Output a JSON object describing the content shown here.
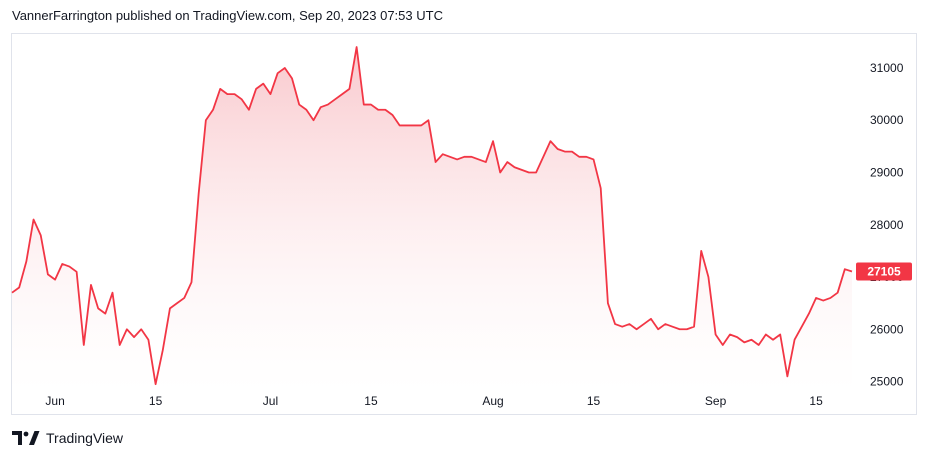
{
  "header": {
    "publisher_line": "VannerFarrington published on TradingView.com, Sep 20, 2023 07:53 UTC"
  },
  "footer": {
    "brand": "TradingView"
  },
  "colors": {
    "line": "#f23645",
    "fill_top": "#f7b6bc",
    "fill_bottom": "#ffffff",
    "grid": "#e0e3eb",
    "price_badge": "#f23645"
  },
  "chart_data": {
    "type": "area",
    "title": "",
    "xlabel": "",
    "ylabel": "",
    "ylim": [
      24800,
      31650
    ],
    "y_ticks": [
      25000,
      26000,
      27000,
      28000,
      29000,
      30000,
      31000
    ],
    "x_ticks": [
      "Jun",
      "15",
      "Jul",
      "15",
      "Aug",
      "15",
      "Sep",
      "15"
    ],
    "last_price_label": "27105",
    "series": [
      {
        "x": [
          "2023-05-26",
          "2023-05-27",
          "2023-05-28",
          "2023-05-29",
          "2023-05-30",
          "2023-05-31",
          "2023-06-01",
          "2023-06-02",
          "2023-06-03",
          "2023-06-04",
          "2023-06-05",
          "2023-06-06",
          "2023-06-07",
          "2023-06-08",
          "2023-06-09",
          "2023-06-10",
          "2023-06-11",
          "2023-06-12",
          "2023-06-13",
          "2023-06-14",
          "2023-06-15",
          "2023-06-16",
          "2023-06-17",
          "2023-06-18",
          "2023-06-19",
          "2023-06-20",
          "2023-06-21",
          "2023-06-22",
          "2023-06-23",
          "2023-06-24",
          "2023-06-25",
          "2023-06-26",
          "2023-06-27",
          "2023-06-28",
          "2023-06-29",
          "2023-06-30",
          "2023-07-01",
          "2023-07-02",
          "2023-07-03",
          "2023-07-04",
          "2023-07-05",
          "2023-07-06",
          "2023-07-07",
          "2023-07-08",
          "2023-07-09",
          "2023-07-10",
          "2023-07-11",
          "2023-07-12",
          "2023-07-13",
          "2023-07-14",
          "2023-07-15",
          "2023-07-16",
          "2023-07-17",
          "2023-07-18",
          "2023-07-19",
          "2023-07-20",
          "2023-07-21",
          "2023-07-22",
          "2023-07-23",
          "2023-07-24",
          "2023-07-25",
          "2023-07-26",
          "2023-07-27",
          "2023-07-28",
          "2023-07-29",
          "2023-07-30",
          "2023-07-31",
          "2023-08-01",
          "2023-08-02",
          "2023-08-03",
          "2023-08-04",
          "2023-08-05",
          "2023-08-06",
          "2023-08-07",
          "2023-08-08",
          "2023-08-09",
          "2023-08-10",
          "2023-08-11",
          "2023-08-12",
          "2023-08-13",
          "2023-08-14",
          "2023-08-15",
          "2023-08-16",
          "2023-08-17",
          "2023-08-18",
          "2023-08-19",
          "2023-08-20",
          "2023-08-21",
          "2023-08-22",
          "2023-08-23",
          "2023-08-24",
          "2023-08-25",
          "2023-08-26",
          "2023-08-27",
          "2023-08-28",
          "2023-08-29",
          "2023-08-30",
          "2023-08-31",
          "2023-09-01",
          "2023-09-02",
          "2023-09-03",
          "2023-09-04",
          "2023-09-05",
          "2023-09-06",
          "2023-09-07",
          "2023-09-08",
          "2023-09-09",
          "2023-09-10",
          "2023-09-11",
          "2023-09-12",
          "2023-09-13",
          "2023-09-14",
          "2023-09-15",
          "2023-09-16",
          "2023-09-17",
          "2023-09-18",
          "2023-09-19",
          "2023-09-20"
        ],
        "values": [
          26700,
          26800,
          27300,
          28100,
          27800,
          27050,
          26950,
          27250,
          27200,
          27100,
          25700,
          26850,
          26400,
          26300,
          26700,
          25700,
          26000,
          25850,
          26000,
          25800,
          24950,
          25600,
          26400,
          26500,
          26600,
          26900,
          28600,
          30000,
          30200,
          30600,
          30500,
          30500,
          30400,
          30200,
          30600,
          30700,
          30500,
          30900,
          31000,
          30800,
          30300,
          30200,
          30000,
          30250,
          30300,
          30400,
          30500,
          30600,
          31400,
          30300,
          30300,
          30200,
          30200,
          30100,
          29900,
          29900,
          29900,
          29900,
          30000,
          29200,
          29350,
          29300,
          29250,
          29300,
          29300,
          29250,
          29200,
          29600,
          29000,
          29200,
          29100,
          29050,
          29000,
          29000,
          29300,
          29600,
          29450,
          29400,
          29400,
          29300,
          29300,
          29250,
          28700,
          26500,
          26100,
          26050,
          26100,
          26000,
          26100,
          26200,
          26000,
          26100,
          26050,
          26000,
          26000,
          26050,
          27500,
          27000,
          25900,
          25700,
          25900,
          25850,
          25750,
          25800,
          25700,
          25900,
          25800,
          25900,
          25100,
          25800,
          26050,
          26300,
          26600,
          26550,
          26600,
          26700,
          27150,
          27105
        ]
      }
    ]
  }
}
